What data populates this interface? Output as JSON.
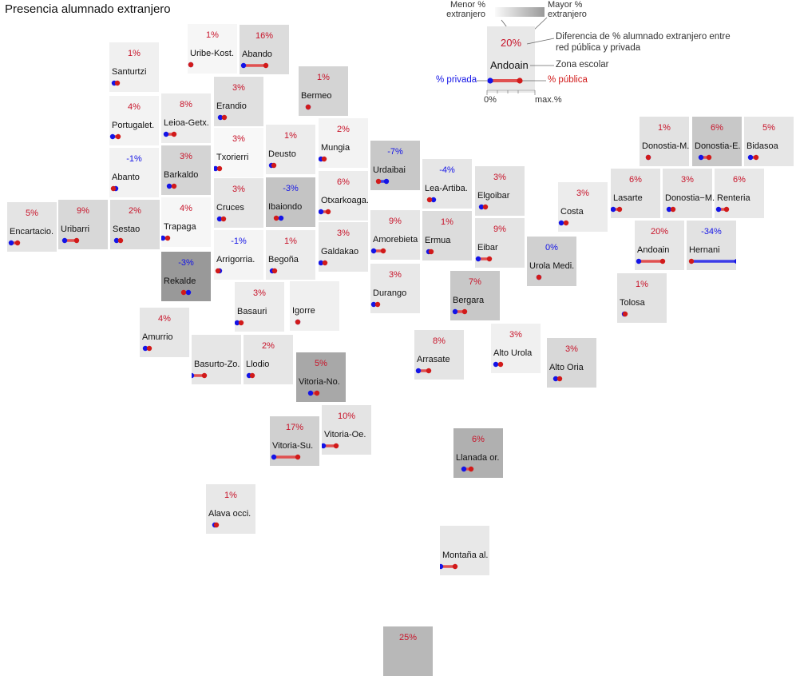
{
  "title": "Presencia alumnado extranjero",
  "colors": {
    "private": "#1414e6",
    "public": "#d11a1a",
    "negative_text": "#1414e6",
    "positive_text": "#c8142a"
  },
  "legend": {
    "less": "Menor % extranjero",
    "more": "Mayor % extranjero",
    "example_diff": "20%",
    "example_zone": "Andoain",
    "diff_desc": "Diferencia de % alumnado extranjero entre red pública y privada",
    "zone_desc": "Zona escolar",
    "private_label": "% privada",
    "public_label": "% pública",
    "axis_min": "0%",
    "axis_max": "max.%"
  },
  "zones": [
    {
      "name": "Uribe-Kost.",
      "diff": "1%"
    },
    {
      "name": "Abando",
      "diff": "16%"
    },
    {
      "name": "Santurtzi",
      "diff": "1%"
    },
    {
      "name": "Bermeo",
      "diff": "1%"
    },
    {
      "name": "Erandio",
      "diff": "3%"
    },
    {
      "name": "Portugalet.",
      "diff": "4%"
    },
    {
      "name": "Leioa-Getx.",
      "diff": "8%"
    },
    {
      "name": "Txorierri",
      "diff": "3%"
    },
    {
      "name": "Deusto",
      "diff": "1%"
    },
    {
      "name": "Mungia",
      "diff": "2%"
    },
    {
      "name": "Abanto",
      "diff": "-1%"
    },
    {
      "name": "Barkaldo",
      "diff": "3%"
    },
    {
      "name": "Urdaibai",
      "diff": "-7%"
    },
    {
      "name": "Lea-Artiba.",
      "diff": "-4%"
    },
    {
      "name": "Elgoibar",
      "diff": "3%"
    },
    {
      "name": "Donostia-M.",
      "diff": "1%"
    },
    {
      "name": "Donostia-E.",
      "diff": "6%"
    },
    {
      "name": "Bidasoa",
      "diff": "5%"
    },
    {
      "name": "Encartacio.",
      "diff": "5%"
    },
    {
      "name": "Uribarri",
      "diff": "9%"
    },
    {
      "name": "Sestao",
      "diff": "2%"
    },
    {
      "name": "Trapaga",
      "diff": "4%"
    },
    {
      "name": "Cruces",
      "diff": "3%"
    },
    {
      "name": "Ibaiondo",
      "diff": "-3%"
    },
    {
      "name": "Otxarkoaga.",
      "diff": "6%"
    },
    {
      "name": "Costa",
      "diff": "3%"
    },
    {
      "name": "Lasarte",
      "diff": "6%"
    },
    {
      "name": "Donostia−M.",
      "diff": "3%"
    },
    {
      "name": "Renteria",
      "diff": "6%"
    },
    {
      "name": "Arrigorria.",
      "diff": "-1%"
    },
    {
      "name": "Begoña",
      "diff": "1%"
    },
    {
      "name": "Galdakao",
      "diff": "3%"
    },
    {
      "name": "Amorebieta",
      "diff": "9%"
    },
    {
      "name": "Ermua",
      "diff": "1%"
    },
    {
      "name": "Eibar",
      "diff": "9%"
    },
    {
      "name": "Urola Medi.",
      "diff": "0%"
    },
    {
      "name": "Andoain",
      "diff": "20%"
    },
    {
      "name": "Hernani",
      "diff": "-34%"
    },
    {
      "name": "Rekalde",
      "diff": "-3%"
    },
    {
      "name": "Durango",
      "diff": "3%"
    },
    {
      "name": "Bergara",
      "diff": "7%"
    },
    {
      "name": "Tolosa",
      "diff": "1%"
    },
    {
      "name": "Basauri",
      "diff": "3%"
    },
    {
      "name": "Igorre",
      "diff": ""
    },
    {
      "name": "Amurrio",
      "diff": "4%"
    },
    {
      "name": "Arrasate",
      "diff": "8%"
    },
    {
      "name": "Alto Urola",
      "diff": "3%"
    },
    {
      "name": "Alto Oria",
      "diff": "3%"
    },
    {
      "name": "Basurto-Zo.",
      "diff": ""
    },
    {
      "name": "Llodio",
      "diff": "2%"
    },
    {
      "name": "Vitoria-No.",
      "diff": "5%"
    },
    {
      "name": "Vitoria-Su.",
      "diff": "17%"
    },
    {
      "name": "Vitoria-Oe.",
      "diff": "10%"
    },
    {
      "name": "Llanada or.",
      "diff": "6%"
    },
    {
      "name": "Alava occi.",
      "diff": "1%"
    },
    {
      "name": "Montaña al.",
      "diff": ""
    },
    {
      "name": "",
      "diff": "25%"
    }
  ]
}
